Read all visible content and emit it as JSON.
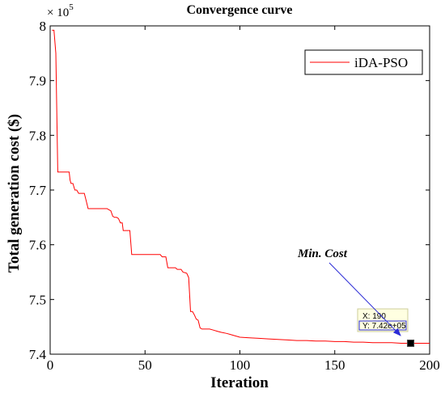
{
  "chart_data": {
    "type": "line",
    "title": "Convergence curve",
    "xlabel": "Iteration",
    "ylabel": "Total generation cost ($)",
    "xlim": [
      0,
      200
    ],
    "ylim": [
      7.4,
      8.0
    ],
    "y_multiplier": "× 10",
    "y_multiplier_exponent": "5",
    "x_ticks": [
      "0",
      "50",
      "100",
      "150",
      "200"
    ],
    "y_ticks": [
      "7.4",
      "7.5",
      "7.6",
      "7.7",
      "7.8",
      "7.9",
      "8"
    ],
    "x_tick_values": [
      0,
      50,
      100,
      150,
      200
    ],
    "y_tick_values": [
      7.4,
      7.5,
      7.6,
      7.7,
      7.8,
      7.9,
      8.0
    ],
    "legend_position": "top-right",
    "series": [
      {
        "name": "iDA-PSO",
        "color": "#ff0000",
        "points": [
          [
            1,
            7.992
          ],
          [
            2,
            7.992
          ],
          [
            3,
            7.95
          ],
          [
            4,
            7.733
          ],
          [
            5,
            7.733
          ],
          [
            6,
            7.733
          ],
          [
            7,
            7.733
          ],
          [
            8,
            7.733
          ],
          [
            9,
            7.733
          ],
          [
            10,
            7.733
          ],
          [
            10.5,
            7.718
          ],
          [
            11,
            7.712
          ],
          [
            12,
            7.712
          ],
          [
            13,
            7.7
          ],
          [
            14,
            7.7
          ],
          [
            15,
            7.694
          ],
          [
            16,
            7.694
          ],
          [
            17,
            7.694
          ],
          [
            18,
            7.694
          ],
          [
            19,
            7.68
          ],
          [
            20,
            7.666
          ],
          [
            21,
            7.666
          ],
          [
            22,
            7.666
          ],
          [
            24,
            7.666
          ],
          [
            26,
            7.666
          ],
          [
            28,
            7.666
          ],
          [
            30,
            7.666
          ],
          [
            31,
            7.664
          ],
          [
            32,
            7.662
          ],
          [
            33,
            7.652
          ],
          [
            34,
            7.65
          ],
          [
            35,
            7.65
          ],
          [
            36,
            7.648
          ],
          [
            37,
            7.64
          ],
          [
            38,
            7.64
          ],
          [
            38.5,
            7.626
          ],
          [
            39,
            7.626
          ],
          [
            42,
            7.626
          ],
          [
            43,
            7.582
          ],
          [
            45,
            7.582
          ],
          [
            50,
            7.582
          ],
          [
            55,
            7.582
          ],
          [
            58,
            7.582
          ],
          [
            59,
            7.578
          ],
          [
            61,
            7.578
          ],
          [
            62,
            7.558
          ],
          [
            64,
            7.558
          ],
          [
            66,
            7.558
          ],
          [
            67,
            7.555
          ],
          [
            69,
            7.555
          ],
          [
            70,
            7.55
          ],
          [
            72,
            7.548
          ],
          [
            73,
            7.54
          ],
          [
            74,
            7.478
          ],
          [
            75,
            7.478
          ],
          [
            76,
            7.472
          ],
          [
            77,
            7.464
          ],
          [
            78,
            7.462
          ],
          [
            79,
            7.448
          ],
          [
            80,
            7.446
          ],
          [
            82,
            7.446
          ],
          [
            84,
            7.446
          ],
          [
            86,
            7.444
          ],
          [
            88,
            7.442
          ],
          [
            90,
            7.44
          ],
          [
            93,
            7.438
          ],
          [
            95,
            7.436
          ],
          [
            97,
            7.434
          ],
          [
            100,
            7.431
          ],
          [
            105,
            7.43
          ],
          [
            110,
            7.429
          ],
          [
            115,
            7.428
          ],
          [
            120,
            7.427
          ],
          [
            125,
            7.426
          ],
          [
            130,
            7.425
          ],
          [
            135,
            7.425
          ],
          [
            140,
            7.424
          ],
          [
            145,
            7.424
          ],
          [
            150,
            7.423
          ],
          [
            155,
            7.423
          ],
          [
            160,
            7.422
          ],
          [
            165,
            7.422
          ],
          [
            170,
            7.421
          ],
          [
            175,
            7.421
          ],
          [
            180,
            7.421
          ],
          [
            185,
            7.42
          ],
          [
            190,
            7.42
          ],
          [
            195,
            7.42
          ],
          [
            200,
            7.42
          ]
        ]
      }
    ],
    "datatip": {
      "x": 190,
      "y": 7.42,
      "x_label": "X: 190",
      "y_label": "Y: 7.42e+05"
    },
    "annotation": {
      "text": "Min. Cost",
      "target_x": 185,
      "target_y": 7.433
    }
  }
}
